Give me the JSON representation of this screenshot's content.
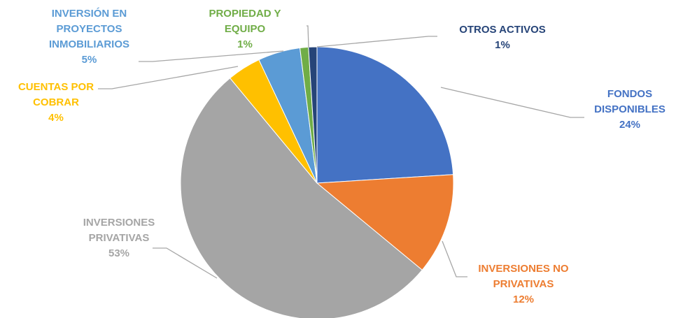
{
  "chart_data": {
    "type": "pie",
    "categories": [
      "FONDOS DISPONIBLES",
      "INVERSIONES NO PRIVATIVAS",
      "INVERSIONES PRIVATIVAS",
      "CUENTAS POR COBRAR",
      "INVERSIÓN EN PROYECTOS INMOBILIARIOS",
      "PROPIEDAD Y EQUIPO",
      "OTROS ACTIVOS"
    ],
    "values": [
      24,
      12,
      53,
      4,
      5,
      1,
      1
    ],
    "value_labels": [
      "24%",
      "12%",
      "53%",
      "4%",
      "5%",
      "1%",
      "1%"
    ],
    "colors": [
      "#4472c4",
      "#ed7d31",
      "#a5a5a5",
      "#ffc000",
      "#5b9bd5",
      "#70ad47",
      "#264478"
    ]
  }
}
